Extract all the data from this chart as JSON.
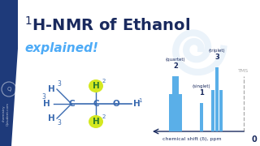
{
  "bg_color": "#ffffff",
  "title_color": "#1a2a5e",
  "explained_color": "#4dabf7",
  "sidebar_color": "#1e3a7a",
  "mol_color": "#3a6ab0",
  "bond_color": "#3a6ab0",
  "highlight_color": "#d4e820",
  "highlight_text_color": "#2a7a2a",
  "bar_color": "#5aafe8",
  "axis_color": "#1a2a5e",
  "label_color": "#1a2a5e",
  "tms_color": "#aaaaaa",
  "xaxis_label": "chemical shift (δ), ppm",
  "zero_label": "0",
  "tms_label": "TMS",
  "quartet_label": "(quartet)",
  "singlet_label": "(singlet)",
  "triplet_label": "(triplet)",
  "quartet_n": "2",
  "singlet_n": "1",
  "triplet_n": "3",
  "watermark_lines": [
    "chemistry",
    "Qstudent.com"
  ]
}
